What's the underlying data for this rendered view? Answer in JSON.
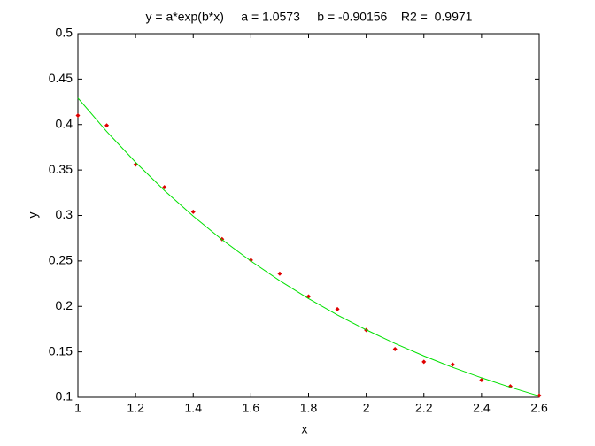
{
  "chart_data": {
    "type": "scatter",
    "title": "y = a*exp(b*x)     a = 1.0573     b = -0.90156    R2 =  0.9971",
    "x_label": "x",
    "y_label": "y",
    "x": [
      1.0,
      1.1,
      1.2,
      1.3,
      1.4,
      1.5,
      1.6,
      1.7,
      1.8,
      1.9,
      2.0,
      2.1,
      2.2,
      2.3,
      2.4,
      2.5,
      2.6
    ],
    "series": [
      {
        "color": "#e00000",
        "style": "markers",
        "values": [
          0.41,
          0.399,
          0.356,
          0.331,
          0.304,
          0.274,
          0.251,
          0.236,
          0.211,
          0.197,
          0.174,
          0.153,
          0.139,
          0.136,
          0.119,
          0.112,
          0.102
        ]
      },
      {
        "color": "#00e000",
        "style": "line",
        "values": [
          0.4292,
          0.3923,
          0.3585,
          0.3275,
          0.2993,
          0.2734,
          0.2499,
          0.2283,
          0.2086,
          0.1906,
          0.1742,
          0.1592,
          0.1455,
          0.1329,
          0.1215,
          0.111,
          0.1014
        ]
      }
    ],
    "xlim": [
      1,
      2.6
    ],
    "xticks": [
      1,
      1.2,
      1.4,
      1.6,
      1.8,
      2,
      2.2,
      2.4,
      2.6
    ],
    "ylim": [
      0.1,
      0.5
    ],
    "yticks": [
      0.1,
      0.15,
      0.2,
      0.25,
      0.3,
      0.35,
      0.4,
      0.45,
      0.5
    ],
    "grid": false
  }
}
